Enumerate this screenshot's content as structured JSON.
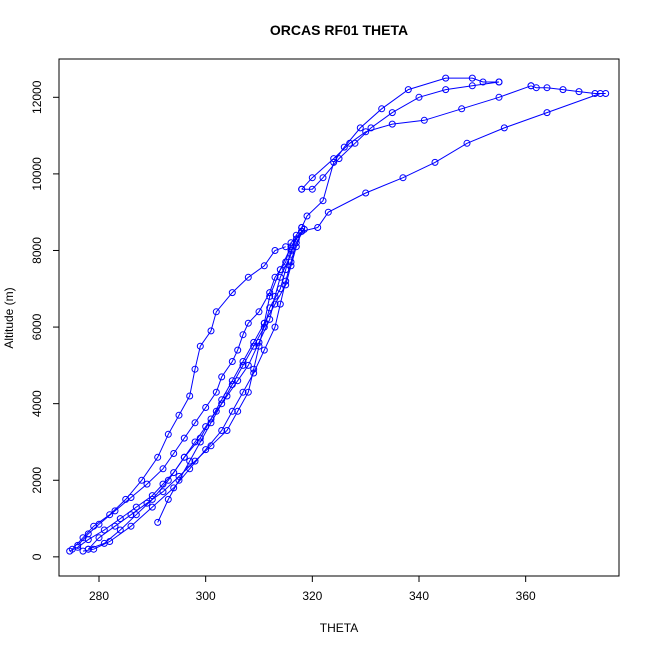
{
  "chart_data": {
    "type": "line",
    "title": "ORCAS RF01 THETA",
    "xlabel": "THETA",
    "ylabel": "Altitude (m)",
    "xlim": [
      272.5,
      377.5
    ],
    "ylim": [
      -500,
      13000
    ],
    "xticks": [
      280,
      300,
      320,
      340,
      360
    ],
    "yticks": [
      0,
      2000,
      4000,
      6000,
      8000,
      10000,
      12000
    ],
    "grid": false,
    "legend": "none",
    "marker": "open-circle",
    "color": "#0000ff",
    "series": [
      {
        "points": [
          [
            274.5,
            150
          ],
          [
            276,
            250
          ],
          [
            278,
            450
          ],
          [
            281,
            700
          ],
          [
            284,
            1000
          ],
          [
            287,
            1300
          ],
          [
            290,
            1600
          ],
          [
            292,
            1900
          ],
          [
            294,
            2200
          ],
          [
            296,
            2600
          ],
          [
            298,
            3000
          ],
          [
            300,
            3400
          ],
          [
            302,
            3800
          ],
          [
            304,
            4200
          ],
          [
            306,
            4600
          ],
          [
            308,
            5000
          ],
          [
            310,
            5600
          ],
          [
            312,
            6200
          ],
          [
            313,
            6800
          ],
          [
            314,
            7300
          ],
          [
            316,
            7900
          ],
          [
            317,
            8400
          ],
          [
            318,
            8600
          ]
        ]
      },
      {
        "points": [
          [
            318,
            8600
          ],
          [
            319,
            8900
          ],
          [
            322,
            9300
          ],
          [
            324,
            10300
          ],
          [
            326,
            10700
          ],
          [
            329,
            11200
          ],
          [
            333,
            11700
          ],
          [
            338,
            12200
          ],
          [
            345,
            12500
          ],
          [
            350,
            12500
          ],
          [
            352,
            12400
          ],
          [
            355,
            12400
          ]
        ]
      },
      {
        "points": [
          [
            355,
            12400
          ],
          [
            350,
            12300
          ],
          [
            345,
            12200
          ],
          [
            340,
            12000
          ],
          [
            335,
            11600
          ],
          [
            331,
            11200
          ],
          [
            328,
            10800
          ],
          [
            325,
            10400
          ],
          [
            322,
            9900
          ],
          [
            320,
            9600
          ],
          [
            318,
            9600
          ]
        ]
      },
      {
        "points": [
          [
            318.5,
            8550
          ],
          [
            317,
            8200
          ],
          [
            316,
            7700
          ],
          [
            315,
            7200
          ],
          [
            314,
            6600
          ],
          [
            313,
            6000
          ],
          [
            311,
            5400
          ],
          [
            309,
            4800
          ],
          [
            307,
            4300
          ],
          [
            305,
            3800
          ],
          [
            303,
            3300
          ],
          [
            300,
            2800
          ],
          [
            297,
            2300
          ],
          [
            294,
            1800
          ],
          [
            290,
            1300
          ],
          [
            286,
            800
          ],
          [
            282,
            400
          ],
          [
            279,
            200
          ],
          [
            277,
            150
          ]
        ]
      },
      {
        "points": [
          [
            275,
            200
          ],
          [
            277,
            500
          ],
          [
            279,
            800
          ],
          [
            282,
            1100
          ],
          [
            285,
            1500
          ],
          [
            288,
            2000
          ],
          [
            291,
            2600
          ],
          [
            293,
            3200
          ],
          [
            295,
            3700
          ],
          [
            297,
            4200
          ],
          [
            298,
            4900
          ],
          [
            299,
            5500
          ],
          [
            301,
            5900
          ],
          [
            302,
            6400
          ],
          [
            305,
            6900
          ],
          [
            308,
            7300
          ],
          [
            311,
            7600
          ],
          [
            313,
            8000
          ],
          [
            315,
            8100
          ]
        ]
      },
      {
        "points": [
          [
            318,
            8500
          ],
          [
            321,
            8600
          ],
          [
            323,
            9000
          ],
          [
            330,
            9500
          ],
          [
            337,
            9900
          ],
          [
            343,
            10300
          ],
          [
            349,
            10800
          ],
          [
            356,
            11200
          ],
          [
            364,
            11600
          ],
          [
            374,
            12100
          ]
        ]
      },
      {
        "points": [
          [
            375,
            12100
          ],
          [
            373,
            12100
          ],
          [
            370,
            12150
          ],
          [
            367,
            12200
          ],
          [
            364,
            12250
          ],
          [
            362,
            12250
          ],
          [
            361,
            12300
          ]
        ]
      },
      {
        "points": [
          [
            361,
            12300
          ],
          [
            355,
            12000
          ],
          [
            348,
            11700
          ],
          [
            341,
            11400
          ],
          [
            335,
            11300
          ],
          [
            330,
            11100
          ],
          [
            327,
            10800
          ],
          [
            324,
            10400
          ],
          [
            320,
            9900
          ],
          [
            318,
            9600
          ]
        ]
      },
      {
        "points": [
          [
            318,
            8500
          ],
          [
            317,
            8100
          ],
          [
            316,
            7600
          ],
          [
            315,
            7100
          ],
          [
            313,
            6600
          ],
          [
            311,
            6100
          ],
          [
            309,
            5600
          ],
          [
            307,
            5100
          ],
          [
            305,
            4600
          ],
          [
            303,
            4100
          ],
          [
            301,
            3600
          ],
          [
            299,
            3100
          ],
          [
            296,
            2600
          ],
          [
            293,
            2000
          ],
          [
            290,
            1500
          ],
          [
            287,
            1100
          ],
          [
            284,
            700
          ],
          [
            281,
            350
          ],
          [
            278,
            200
          ]
        ]
      },
      {
        "points": [
          [
            278,
            200
          ],
          [
            280,
            500
          ],
          [
            283,
            800
          ],
          [
            286,
            1100
          ],
          [
            289,
            1400
          ],
          [
            292,
            1700
          ],
          [
            295,
            2100
          ],
          [
            298,
            2500
          ],
          [
            301,
            2900
          ],
          [
            304,
            3300
          ],
          [
            306,
            3800
          ],
          [
            308,
            4300
          ],
          [
            309,
            4900
          ],
          [
            310,
            5500
          ],
          [
            311,
            6100
          ],
          [
            312,
            6800
          ],
          [
            314,
            7500
          ],
          [
            316,
            8100
          ],
          [
            318,
            8500
          ]
        ]
      },
      {
        "points": [
          [
            276,
            300
          ],
          [
            278,
            600
          ],
          [
            280,
            850
          ],
          [
            283,
            1200
          ],
          [
            286,
            1550
          ],
          [
            289,
            1900
          ],
          [
            292,
            2300
          ],
          [
            294,
            2700
          ],
          [
            296,
            3100
          ],
          [
            298,
            3500
          ],
          [
            300,
            3900
          ],
          [
            302,
            4300
          ],
          [
            303,
            4700
          ],
          [
            305,
            5100
          ],
          [
            306,
            5400
          ],
          [
            307,
            5800
          ],
          [
            308,
            6100
          ],
          [
            310,
            6400
          ],
          [
            312,
            6900
          ],
          [
            313,
            7300
          ],
          [
            315,
            7700
          ],
          [
            316,
            8200
          ],
          [
            318,
            8500
          ]
        ]
      },
      {
        "points": [
          [
            291,
            900
          ],
          [
            293,
            1500
          ],
          [
            295,
            2000
          ],
          [
            297,
            2500
          ],
          [
            299,
            3000
          ],
          [
            301,
            3500
          ],
          [
            303,
            4000
          ],
          [
            305,
            4500
          ],
          [
            307,
            5000
          ],
          [
            309,
            5500
          ],
          [
            311,
            6000
          ],
          [
            312,
            6500
          ],
          [
            314,
            7000
          ],
          [
            315,
            7500
          ],
          [
            316,
            8000
          ],
          [
            317,
            8300
          ]
        ]
      }
    ]
  }
}
